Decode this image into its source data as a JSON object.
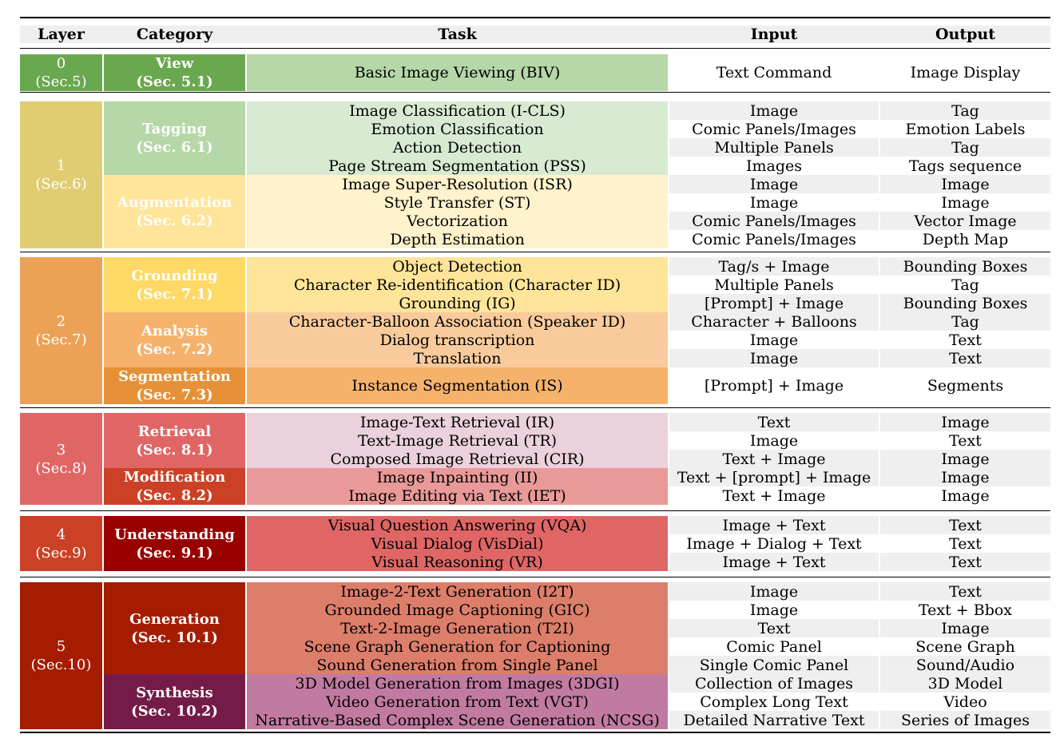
{
  "headers": {
    "layer": "Layer",
    "category": "Category",
    "task": "Task",
    "input": "Input",
    "output": "Output"
  },
  "layers": [
    {
      "num": "0",
      "sec": "(Sec.5)",
      "color": "#6aa84f",
      "categories": [
        {
          "name": "View",
          "sec": "(Sec. 5.1)",
          "color": "#6aa84f",
          "task_color": "#b6d7a8",
          "text_color": "#ffffff",
          "rows": [
            {
              "task": "Basic Image Viewing (BIV)",
              "input": "Text Command",
              "output": "Image Display"
            }
          ]
        }
      ]
    },
    {
      "num": "1",
      "sec": "(Sec.6)",
      "color": "#e0cd72",
      "categories": [
        {
          "name": "Tagging",
          "sec": "(Sec. 6.1)",
          "color": "#b6d7a8",
          "task_color": "#d9ead3",
          "text_color": "#ffffff",
          "rows": [
            {
              "task": "Image Classification (I-CLS)",
              "input": "Image",
              "output": "Tag"
            },
            {
              "task": "Emotion Classification",
              "input": "Comic Panels/Images",
              "output": "Emotion Labels"
            },
            {
              "task": "Action Detection",
              "input": "Multiple Panels",
              "output": "Tag"
            },
            {
              "task": "Page Stream Segmentation (PSS)",
              "input": "Images",
              "output": "Tags sequence"
            }
          ]
        },
        {
          "name": "Augmentation",
          "sec": "(Sec. 6.2)",
          "color": "#ffe599",
          "task_color": "#fff2cc",
          "text_color": "#ffffff",
          "rows": [
            {
              "task": "Image Super-Resolution (ISR)",
              "input": "Image",
              "output": "Image"
            },
            {
              "task": "Style Transfer (ST)",
              "input": "Image",
              "output": "Image"
            },
            {
              "task": "Vectorization",
              "input": "Comic Panels/Images",
              "output": "Vector Image"
            },
            {
              "task": "Depth Estimation",
              "input": "Comic Panels/Images",
              "output": "Depth Map"
            }
          ]
        }
      ]
    },
    {
      "num": "2",
      "sec": "(Sec.7)",
      "color": "#eba256",
      "categories": [
        {
          "name": "Grounding",
          "sec": "(Sec. 7.1)",
          "color": "#ffd966",
          "task_color": "#ffe599",
          "text_color": "#ffffff",
          "rows": [
            {
              "task": "Object Detection",
              "input": "Tag/s + Image",
              "output": "Bounding Boxes"
            },
            {
              "task": "Character Re-identification (Character ID)",
              "input": "Multiple Panels",
              "output": "Tag"
            },
            {
              "task": "Grounding (IG)",
              "input": "[Prompt] + Image",
              "output": "Bounding Boxes"
            }
          ]
        },
        {
          "name": "Analysis",
          "sec": "(Sec. 7.2)",
          "color": "#f6b26b",
          "task_color": "#f9cb9c",
          "text_color": "#ffffff",
          "rows": [
            {
              "task": "Character-Balloon Association (Speaker ID)",
              "input": "Character + Balloons",
              "output": "Tag"
            },
            {
              "task": "Dialog transcription",
              "input": "Image",
              "output": "Text"
            },
            {
              "task": "Translation",
              "input": "Image",
              "output": "Text"
            }
          ]
        },
        {
          "name": "Segmentation",
          "sec": "(Sec. 7.3)",
          "color": "#e69138",
          "task_color": "#f6b26b",
          "text_color": "#ffffff",
          "rows": [
            {
              "task": "Instance Segmentation (IS)",
              "input": "[Prompt] + Image",
              "output": "Segments"
            }
          ]
        }
      ]
    },
    {
      "num": "3",
      "sec": "(Sec.8)",
      "color": "#e06666",
      "categories": [
        {
          "name": "Retrieval",
          "sec": "(Sec. 8.1)",
          "color": "#e06666",
          "task_color": "#ead1dc",
          "text_color": "#ffffff",
          "rows": [
            {
              "task": "Image-Text Retrieval (IR)",
              "input": "Text",
              "output": "Image"
            },
            {
              "task": "Text-Image Retrieval (TR)",
              "input": "Image",
              "output": "Text"
            },
            {
              "task": "Composed Image Retrieval (CIR)",
              "input": "Text + Image",
              "output": "Image"
            }
          ]
        },
        {
          "name": "Modification",
          "sec": "(Sec. 8.2)",
          "color": "#cc4125",
          "task_color": "#ea9999",
          "text_color": "#ffffff",
          "rows": [
            {
              "task": "Image Inpainting (II)",
              "input": "Text + [prompt] + Image",
              "output": "Image"
            },
            {
              "task": "Image Editing via Text (IET)",
              "input": "Text + Image",
              "output": "Image"
            }
          ]
        }
      ]
    },
    {
      "num": "4",
      "sec": "(Sec.9)",
      "color": "#cc4125",
      "categories": [
        {
          "name": "Understanding",
          "sec": "(Sec. 9.1)",
          "color": "#990000",
          "task_color": "#e06666",
          "text_color": "#ffffff",
          "rows": [
            {
              "task": "Visual Question Answering (VQA)",
              "input": "Image + Text",
              "output": "Text"
            },
            {
              "task": "Visual Dialog (VisDial)",
              "input": "Image + Dialog + Text",
              "output": "Text"
            },
            {
              "task": "Visual Reasoning (VR)",
              "input": "Image + Text",
              "output": "Text"
            }
          ]
        }
      ]
    },
    {
      "num": "5",
      "sec": "(Sec.10)",
      "color": "#a61c00",
      "categories": [
        {
          "name": "Generation",
          "sec": "(Sec. 10.1)",
          "color": "#a61c00",
          "task_color": "#dd7e6b",
          "text_color": "#ffffff",
          "rows": [
            {
              "task": "Image-2-Text Generation (I2T)",
              "input": "Image",
              "output": "Text"
            },
            {
              "task": "Grounded Image Captioning (GIC)",
              "input": "Image",
              "output": "Text + Bbox"
            },
            {
              "task": "Text-2-Image Generation (T2I)",
              "input": "Text",
              "output": "Image"
            },
            {
              "task": "Scene Graph Generation for Captioning",
              "input": "Comic Panel",
              "output": "Scene Graph"
            },
            {
              "task": "Sound Generation from Single Panel",
              "input": "Single Comic Panel",
              "output": "Sound/Audio"
            }
          ]
        },
        {
          "name": "Synthesis",
          "sec": "(Sec. 10.2)",
          "color": "#741b47",
          "task_color": "#c27ba0",
          "text_color": "#ffffff",
          "rows": [
            {
              "task": "3D Model Generation from Images (3DGI)",
              "input": "Collection of Images",
              "output": "3D Model"
            },
            {
              "task": "Video Generation from Text (VGT)",
              "input": "Complex Long Text",
              "output": "Video"
            },
            {
              "task": "Narrative-Based Complex Scene Generation (NCSG)",
              "input": "Detailed Narrative Text",
              "output": "Series of Images"
            }
          ]
        }
      ]
    }
  ]
}
